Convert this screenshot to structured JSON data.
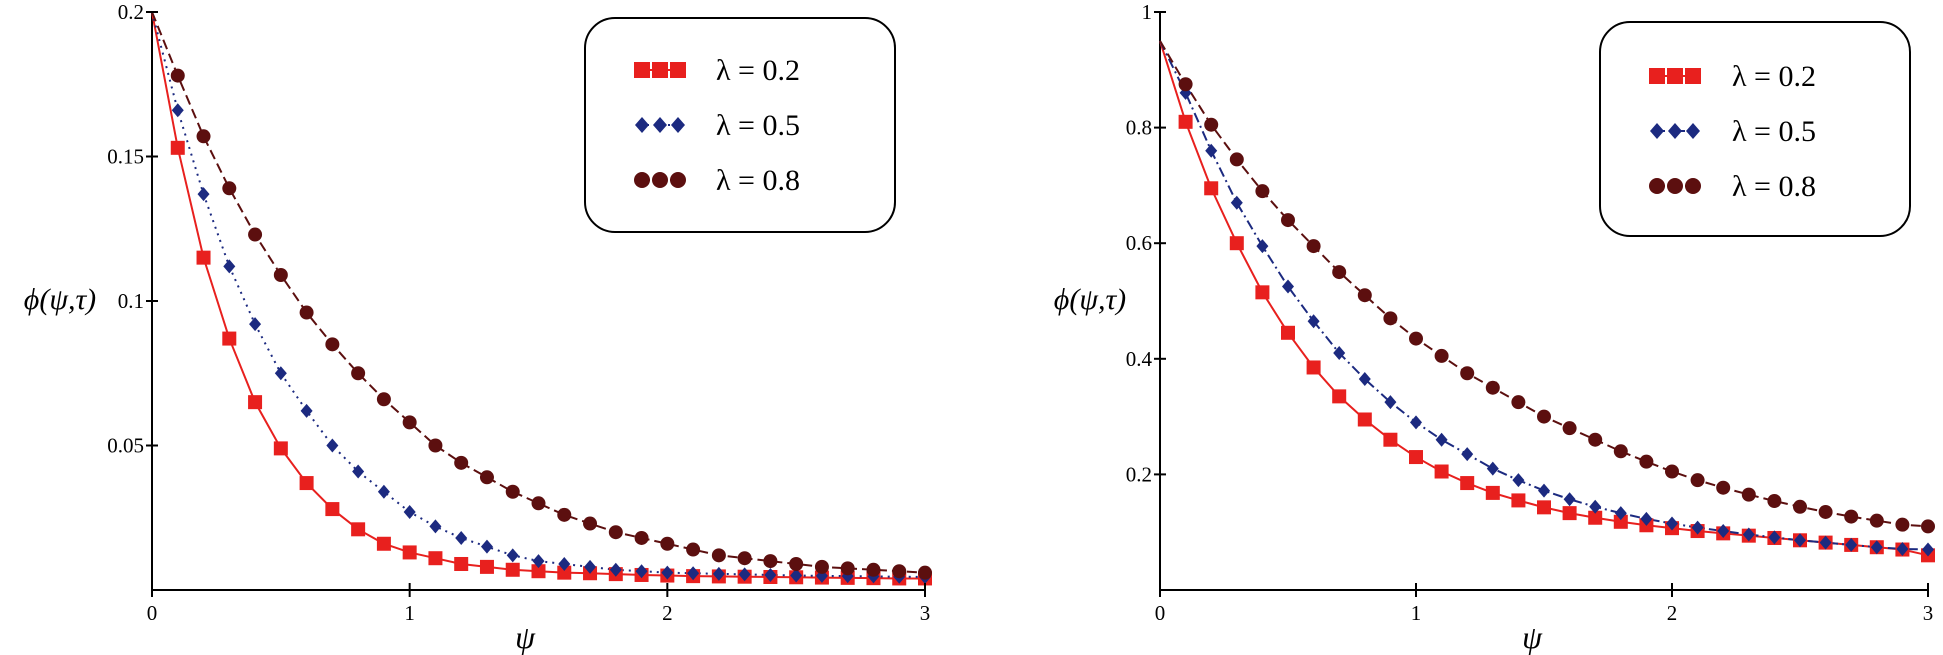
{
  "colors": {
    "series": [
      "#e8201e",
      "#1c2a80",
      "#5c0f0f"
    ],
    "axis": "#000000",
    "background": "#ffffff"
  },
  "chart_data": [
    {
      "type": "line",
      "title": "",
      "xlabel": "ψ",
      "ylabel": "ϕ(ψ,τ)",
      "xlim": [
        0,
        3
      ],
      "ylim": [
        0,
        0.2
      ],
      "xticks": [
        0,
        1,
        2,
        3
      ],
      "xtick_labels": [
        "0",
        "1",
        "2",
        "3"
      ],
      "yticks": [
        0.05,
        0.1,
        0.15,
        0.2
      ],
      "ytick_labels": [
        "0.05",
        "0.1",
        "0.15",
        "0.2"
      ],
      "grid": false,
      "legend_position": "top-right",
      "x": [
        0,
        0.1,
        0.2,
        0.3,
        0.4,
        0.5,
        0.6,
        0.7,
        0.8,
        0.9,
        1.0,
        1.1,
        1.2,
        1.3,
        1.4,
        1.5,
        1.6,
        1.7,
        1.8,
        1.9,
        2.0,
        2.1,
        2.2,
        2.3,
        2.4,
        2.5,
        2.6,
        2.7,
        2.8,
        2.9,
        3.0
      ],
      "series": [
        {
          "name": "λ = 0.2",
          "marker": "square",
          "line": "solid",
          "values": [
            0.2,
            0.153,
            0.115,
            0.087,
            0.065,
            0.049,
            0.037,
            0.028,
            0.021,
            0.016,
            0.013,
            0.011,
            0.009,
            0.008,
            0.007,
            0.0065,
            0.006,
            0.0058,
            0.0055,
            0.0052,
            0.005,
            0.0048,
            0.0047,
            0.0046,
            0.0045,
            0.0044,
            0.0043,
            0.0042,
            0.0041,
            0.004,
            0.004
          ]
        },
        {
          "name": "λ = 0.5",
          "marker": "diamond",
          "line": "dotted",
          "values": [
            0.2,
            0.166,
            0.137,
            0.112,
            0.092,
            0.075,
            0.062,
            0.05,
            0.041,
            0.034,
            0.027,
            0.022,
            0.018,
            0.015,
            0.012,
            0.01,
            0.009,
            0.008,
            0.007,
            0.0065,
            0.006,
            0.0058,
            0.0056,
            0.0054,
            0.0052,
            0.005,
            0.0049,
            0.0048,
            0.0047,
            0.0046,
            0.0045
          ]
        },
        {
          "name": "λ = 0.8",
          "marker": "circle",
          "line": "dashed",
          "values": [
            0.2,
            0.178,
            0.157,
            0.139,
            0.123,
            0.109,
            0.096,
            0.085,
            0.075,
            0.066,
            0.058,
            0.05,
            0.044,
            0.039,
            0.034,
            0.03,
            0.026,
            0.023,
            0.02,
            0.018,
            0.016,
            0.014,
            0.012,
            0.011,
            0.01,
            0.009,
            0.008,
            0.0075,
            0.007,
            0.0065,
            0.006
          ]
        }
      ]
    },
    {
      "type": "line",
      "title": "",
      "xlabel": "ψ",
      "ylabel": "ϕ(ψ,τ)",
      "xlim": [
        0,
        3
      ],
      "ylim": [
        0,
        1
      ],
      "xticks": [
        0,
        1,
        2,
        3
      ],
      "xtick_labels": [
        "0",
        "1",
        "2",
        "3"
      ],
      "yticks": [
        0.2,
        0.4,
        0.6,
        0.8,
        1
      ],
      "ytick_labels": [
        "0.2",
        "0.4",
        "0.6",
        "0.8",
        "1"
      ],
      "grid": false,
      "legend_position": "top-right",
      "x": [
        0,
        0.1,
        0.2,
        0.3,
        0.4,
        0.5,
        0.6,
        0.7,
        0.8,
        0.9,
        1.0,
        1.1,
        1.2,
        1.3,
        1.4,
        1.5,
        1.6,
        1.7,
        1.8,
        1.9,
        2.0,
        2.1,
        2.2,
        2.3,
        2.4,
        2.5,
        2.6,
        2.7,
        2.8,
        2.9,
        3.0
      ],
      "series": [
        {
          "name": "λ = 0.2",
          "marker": "square",
          "line": "solid",
          "values": [
            0.95,
            0.81,
            0.695,
            0.6,
            0.515,
            0.445,
            0.385,
            0.335,
            0.295,
            0.26,
            0.23,
            0.205,
            0.185,
            0.168,
            0.155,
            0.143,
            0.133,
            0.125,
            0.118,
            0.112,
            0.107,
            0.102,
            0.098,
            0.094,
            0.09,
            0.086,
            0.082,
            0.078,
            0.074,
            0.07,
            0.06
          ]
        },
        {
          "name": "λ = 0.5",
          "marker": "diamond",
          "line": "dash-dot",
          "values": [
            0.95,
            0.86,
            0.76,
            0.67,
            0.595,
            0.525,
            0.465,
            0.41,
            0.365,
            0.325,
            0.29,
            0.26,
            0.235,
            0.21,
            0.19,
            0.172,
            0.157,
            0.144,
            0.133,
            0.123,
            0.115,
            0.108,
            0.102,
            0.096,
            0.091,
            0.086,
            0.082,
            0.078,
            0.074,
            0.071,
            0.07
          ]
        },
        {
          "name": "λ = 0.8",
          "marker": "circle",
          "line": "dashed",
          "values": [
            0.95,
            0.875,
            0.805,
            0.745,
            0.69,
            0.64,
            0.595,
            0.55,
            0.51,
            0.47,
            0.435,
            0.405,
            0.375,
            0.35,
            0.325,
            0.3,
            0.28,
            0.26,
            0.24,
            0.222,
            0.205,
            0.19,
            0.177,
            0.165,
            0.154,
            0.144,
            0.135,
            0.127,
            0.12,
            0.113,
            0.11
          ]
        }
      ]
    }
  ]
}
